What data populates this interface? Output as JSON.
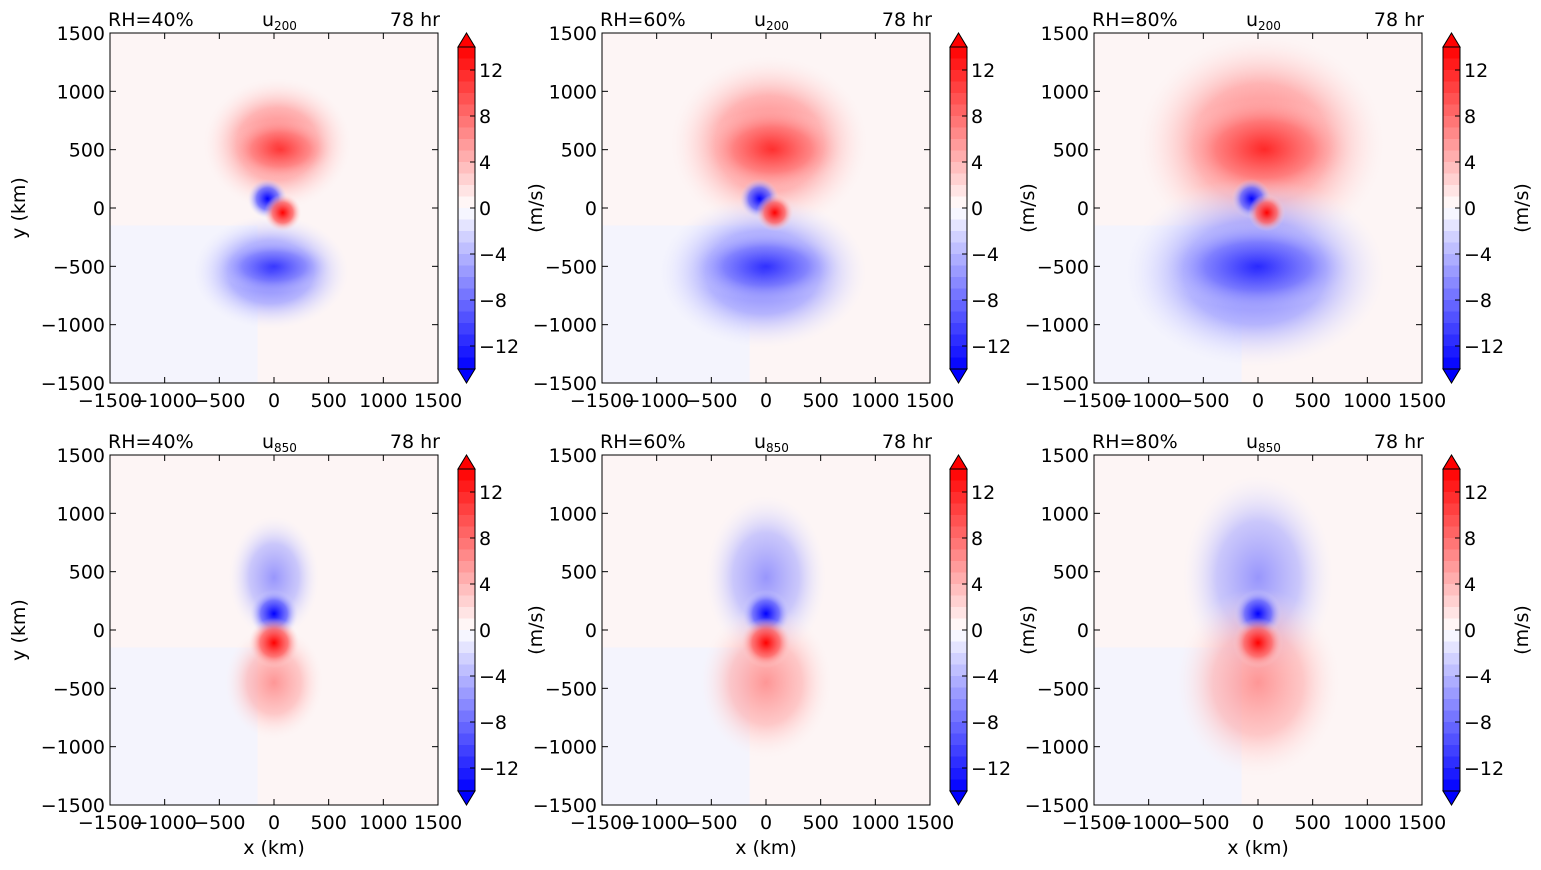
{
  "figure": {
    "colorbar_label": "(m/s)",
    "colorbar_ticks": [
      "12",
      "8",
      "4",
      "0",
      "−4",
      "−8",
      "−12"
    ],
    "colorbar_values": [
      12,
      8,
      4,
      0,
      -4,
      -8,
      -12
    ],
    "colorbar_range": [
      -14,
      14
    ],
    "colormap": {
      "negative": "#0000ff",
      "zero": "#ffffff",
      "positive": "#ff0000"
    },
    "x_tick_labels": [
      "−1500",
      "−1000",
      "−500",
      "0",
      "500",
      "1000",
      "1500"
    ],
    "y_tick_labels": [
      "1500",
      "1000",
      "500",
      "0",
      "−500",
      "−1000",
      "−1500"
    ],
    "xlabel": "x (km)",
    "ylabel": "y (km)"
  },
  "chart_data": [
    {
      "type": "heatmap",
      "title_left": "RH=40%",
      "title_center": "u",
      "title_subscript": "200",
      "title_right": "78 hr",
      "xlim": [
        -1500,
        1500
      ],
      "ylim": [
        -1500,
        1500
      ],
      "level": 200,
      "rh_percent": 40,
      "peak_positive": 14,
      "peak_negative": -14
    },
    {
      "type": "heatmap",
      "title_left": "RH=60%",
      "title_center": "u",
      "title_subscript": "200",
      "title_right": "78 hr",
      "xlim": [
        -1500,
        1500
      ],
      "ylim": [
        -1500,
        1500
      ],
      "level": 200,
      "rh_percent": 60,
      "peak_positive": 14,
      "peak_negative": -14
    },
    {
      "type": "heatmap",
      "title_left": "RH=80%",
      "title_center": "u",
      "title_subscript": "200",
      "title_right": "78 hr",
      "xlim": [
        -1500,
        1500
      ],
      "ylim": [
        -1500,
        1500
      ],
      "level": 200,
      "rh_percent": 80,
      "peak_positive": 14,
      "peak_negative": -14
    },
    {
      "type": "heatmap",
      "title_left": "RH=40%",
      "title_center": "u",
      "title_subscript": "850",
      "title_right": "78 hr",
      "xlim": [
        -1500,
        1500
      ],
      "ylim": [
        -1500,
        1500
      ],
      "level": 850,
      "rh_percent": 40,
      "peak_positive": 14,
      "peak_negative": -14
    },
    {
      "type": "heatmap",
      "title_left": "RH=60%",
      "title_center": "u",
      "title_subscript": "850",
      "title_right": "78 hr",
      "xlim": [
        -1500,
        1500
      ],
      "ylim": [
        -1500,
        1500
      ],
      "level": 850,
      "rh_percent": 60,
      "peak_positive": 14,
      "peak_negative": -14
    },
    {
      "type": "heatmap",
      "title_left": "RH=80%",
      "title_center": "u",
      "title_subscript": "850",
      "title_right": "78 hr",
      "xlim": [
        -1500,
        1500
      ],
      "ylim": [
        -1500,
        1500
      ],
      "level": 850,
      "rh_percent": 80,
      "peak_positive": 14,
      "peak_negative": -14
    }
  ]
}
